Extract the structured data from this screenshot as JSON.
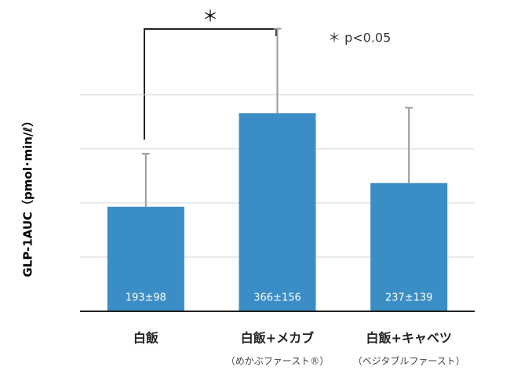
{
  "chart_data": {
    "type": "bar",
    "ylabel": "GLP-1AUC（pmol･min/ℓ）",
    "categories": [
      "白飯",
      "白飯+メカブ",
      "白飯+キャベツ"
    ],
    "subcategories": [
      null,
      "（めかぶファースト®）",
      "（ベジタブルファースト）"
    ],
    "values": [
      193,
      366,
      237
    ],
    "errors": [
      98,
      156,
      139
    ],
    "value_labels": [
      "193±98",
      "366±156",
      "237±139"
    ],
    "color": "#3b8dc6",
    "error_color": "#9a9a9a",
    "ylim": [
      0,
      575
    ],
    "yticks": [
      100,
      200,
      300,
      400
    ],
    "grid": true,
    "significance_mark": "＊",
    "annotation": "＊ p<0.05"
  }
}
